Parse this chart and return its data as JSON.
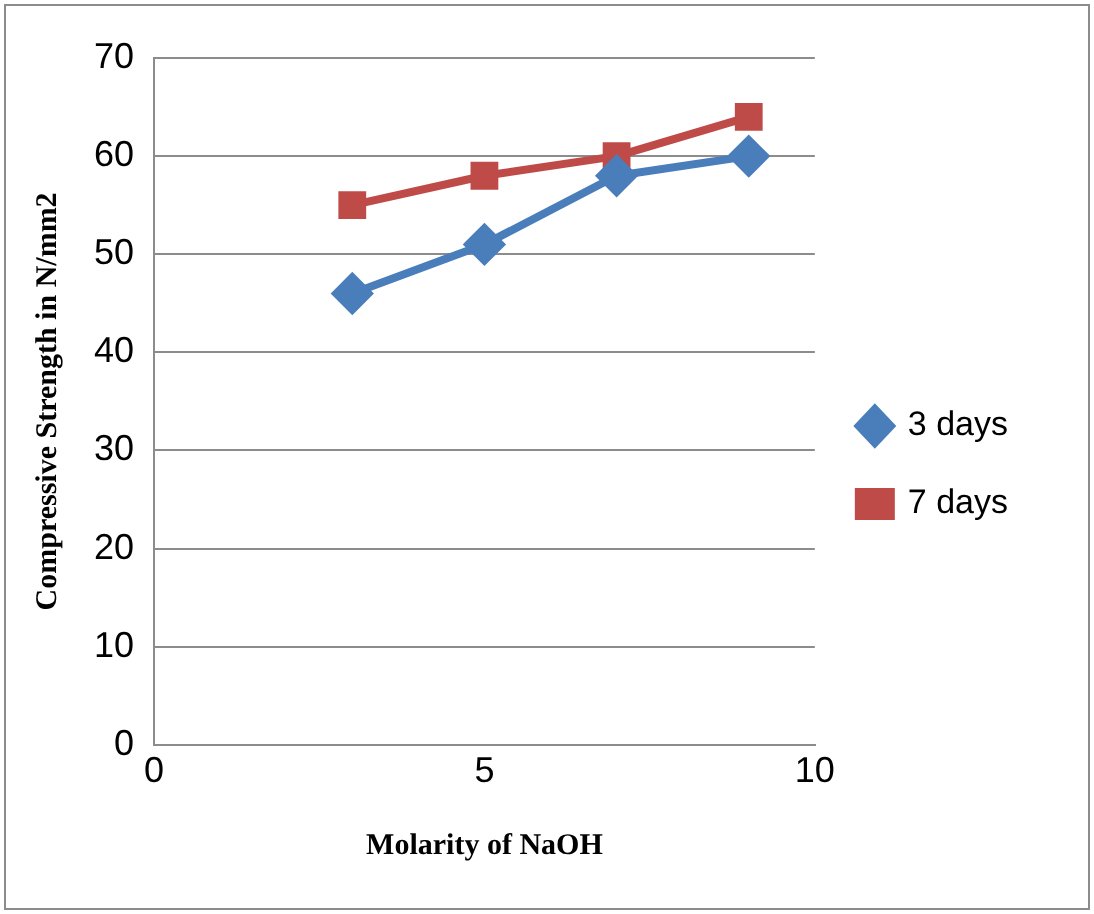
{
  "chart_data": {
    "type": "line",
    "xlabel": "Molarity of NaOH",
    "ylabel": "Compressive Strength in N/mm2",
    "x": [
      3,
      5,
      7,
      9
    ],
    "series": [
      {
        "name": "3 days",
        "color": "#4a7ebb",
        "marker": "diamond",
        "values": [
          46,
          51,
          58,
          60
        ]
      },
      {
        "name": "7 days",
        "color": "#be4b48",
        "marker": "square",
        "values": [
          55,
          58,
          60,
          64
        ]
      }
    ],
    "xlim": [
      0,
      10
    ],
    "xticks": [
      0,
      5,
      10
    ],
    "ylim": [
      0,
      70
    ],
    "yticks": [
      0,
      10,
      20,
      30,
      40,
      50,
      60,
      70
    ],
    "grid": "y",
    "legend": "right"
  }
}
